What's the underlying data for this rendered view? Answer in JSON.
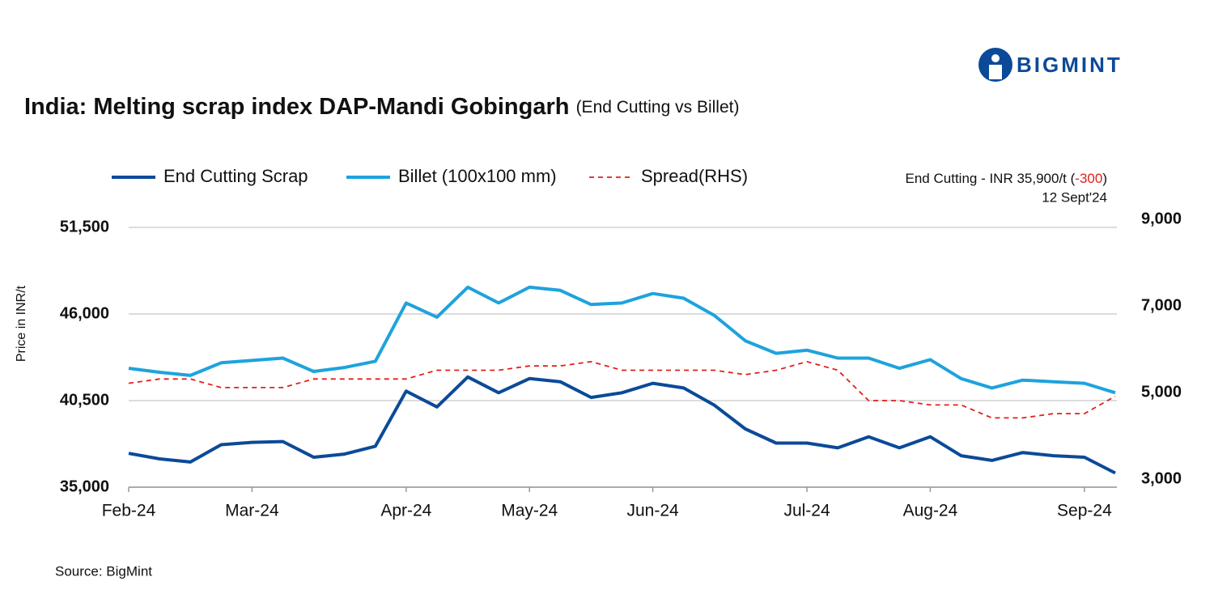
{
  "chart_data": {
    "type": "line",
    "title": "India: Melting scrap index DAP-Mandi Gobingarh",
    "subtitle": "(End Cutting vs Billet)",
    "brand": "BIGMINT",
    "annotation": {
      "prefix": "End Cutting - INR 35,900/t (",
      "change": "-300",
      "suffix": ")",
      "date": "12 Sept'24"
    },
    "source": "Source: BigMint",
    "y_label": "Price in INR/t",
    "categories": [
      "Feb-24",
      null,
      null,
      null,
      "Mar-24",
      null,
      null,
      null,
      null,
      "Apr-24",
      null,
      null,
      null,
      "May-24",
      null,
      null,
      null,
      "Jun-24",
      null,
      null,
      null,
      null,
      "Jul-24",
      null,
      null,
      null,
      "Aug-24",
      null,
      null,
      null,
      null,
      "Sep-24",
      null
    ],
    "series": [
      {
        "name": "End Cutting Scrap",
        "color": "#0b4a98",
        "values": [
          37150,
          36800,
          36600,
          37700,
          37850,
          37900,
          36900,
          37100,
          37600,
          41100,
          40100,
          42000,
          41000,
          41900,
          41700,
          40700,
          41000,
          41600,
          41300,
          40200,
          38700,
          37800,
          37800,
          37500,
          38200,
          37500,
          38200,
          37000,
          36700,
          37200,
          37000,
          36900,
          35900
        ]
      },
      {
        "name": "Billet (100x100 mm)",
        "color": "#1ea3dc",
        "values": [
          42550,
          42300,
          42100,
          42900,
          43050,
          43200,
          42350,
          42600,
          43000,
          46700,
          45800,
          47700,
          46700,
          47700,
          47500,
          46600,
          46700,
          47300,
          47000,
          45900,
          44300,
          43500,
          43700,
          43200,
          43200,
          42550,
          43100,
          41900,
          41300,
          41800,
          41700,
          41600,
          41000
        ]
      },
      {
        "name": "Spread(RHS)",
        "color": "#e0201c",
        "dashed": true,
        "axis": "y2",
        "values": [
          5400,
          5500,
          5500,
          5300,
          5300,
          5300,
          5500,
          5500,
          5500,
          5500,
          5700,
          5700,
          5700,
          5800,
          5800,
          5900,
          5700,
          5700,
          5700,
          5700,
          5600,
          5700,
          5900,
          5700,
          5000,
          5000,
          4900,
          4900,
          4600,
          4600,
          4700,
          4700,
          5100
        ]
      }
    ],
    "ylim": [
      35000,
      51500
    ],
    "yticks": [
      {
        "value": 35000,
        "label": "35,000"
      },
      {
        "value": 40500,
        "label": "40,500"
      },
      {
        "value": 46000,
        "label": "46,000"
      },
      {
        "value": 51500,
        "label": "51,500"
      }
    ],
    "y2lim": [
      3000,
      9000
    ],
    "y2ticks": [
      {
        "value": 3000,
        "label": "3,000"
      },
      {
        "value": 5000,
        "label": "5,000"
      },
      {
        "value": 7000,
        "label": "7,000"
      },
      {
        "value": 9000,
        "label": "9,000"
      }
    ],
    "grid": true,
    "legend": "top"
  }
}
